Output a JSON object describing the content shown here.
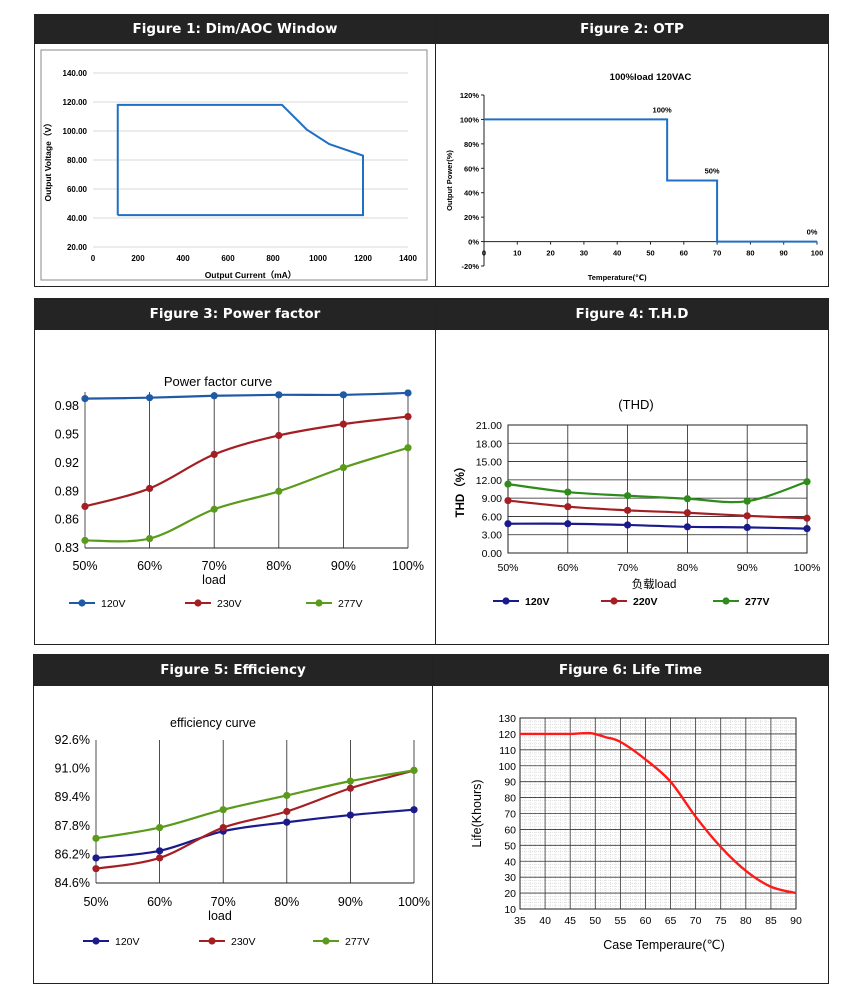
{
  "figures": {
    "f1": {
      "header": "Figure 1: Dim/AOC Window"
    },
    "f2": {
      "header": "Figure 2: OTP"
    },
    "f3": {
      "header": "Figure 3: Power factor"
    },
    "f4": {
      "header": "Figure 4: T.H.D"
    },
    "f5": {
      "header": "Figure 5: Efficiency"
    },
    "f6": {
      "header": "Figure 6: Life Time"
    }
  },
  "chart_data": [
    {
      "id": "f1",
      "type": "line",
      "title": "",
      "xlabel": "Output Current（mA）",
      "ylabel": "Output Voltage（V）",
      "xlim": [
        0,
        1400
      ],
      "ylim": [
        20,
        140
      ],
      "xticks": [
        "0",
        "200",
        "400",
        "600",
        "800",
        "1000",
        "1200",
        "1400"
      ],
      "yticks": [
        "20.00",
        "40.00",
        "60.00",
        "80.00",
        "100.00",
        "120.00",
        "140.00"
      ],
      "grid": "horizontal",
      "color": "#1f6fc4",
      "series": [
        {
          "points": [
            [
              110,
              42
            ],
            [
              110,
              118
            ],
            [
              840,
              118
            ],
            [
              950,
              101
            ],
            [
              1050,
              91
            ],
            [
              1200,
              83
            ],
            [
              1200,
              42
            ],
            [
              110,
              42
            ]
          ]
        }
      ]
    },
    {
      "id": "f2",
      "type": "line",
      "title": "100%load  120VAC",
      "xlabel": "Temperature(℃)",
      "ylabel": "Output Power(%)",
      "xlim": [
        0,
        100
      ],
      "ylim": [
        -20,
        120
      ],
      "xticks": [
        "0",
        "10",
        "20",
        "30",
        "40",
        "50",
        "60",
        "70",
        "80",
        "90",
        "100"
      ],
      "yticks": [
        "-20%",
        "0%",
        "20%",
        "40%",
        "60%",
        "80%",
        "100%",
        "120%"
      ],
      "grid": "none",
      "color": "#1f6fc4",
      "series": [
        {
          "points": [
            [
              0,
              100
            ],
            [
              55,
              100
            ],
            [
              55,
              50
            ],
            [
              70,
              50
            ],
            [
              70,
              0
            ],
            [
              100,
              0
            ]
          ]
        }
      ],
      "annotations": [
        {
          "text": "100%",
          "x": 55,
          "y": 100
        },
        {
          "text": "50%",
          "x": 70,
          "y": 50
        },
        {
          "text": "0%",
          "x": 100,
          "y": 0
        }
      ]
    },
    {
      "id": "f3",
      "type": "line",
      "title": "Power factor curve",
      "xlabel": "load",
      "ylabel": "",
      "categories": [
        "50%",
        "60%",
        "70%",
        "80%",
        "90%",
        "100%"
      ],
      "ylim": [
        0.83,
        0.995
      ],
      "yticks": [
        0.83,
        0.86,
        0.89,
        0.92,
        0.95,
        0.98
      ],
      "ytick_labels": [
        "0.83",
        "0.86",
        "0.89",
        "0.92",
        "0.95",
        "0.98"
      ],
      "grid": "vertical",
      "legend": "bottom",
      "series": [
        {
          "name": "120V",
          "color": "#1f5aa6",
          "values": [
            0.988,
            0.989,
            0.991,
            0.992,
            0.992,
            0.994
          ]
        },
        {
          "name": "230V",
          "color": "#a31f24",
          "values": [
            0.874,
            0.893,
            0.929,
            0.949,
            0.961,
            0.969
          ]
        },
        {
          "name": "277V",
          "color": "#5a9b1c",
          "values": [
            0.838,
            0.84,
            0.871,
            0.89,
            0.915,
            0.936
          ]
        }
      ]
    },
    {
      "id": "f4",
      "type": "line",
      "title": "(THD)",
      "xlabel": "负载load",
      "ylabel": "THD（%）",
      "categories": [
        "50%",
        "60%",
        "70%",
        "80%",
        "90%",
        "100%"
      ],
      "ylim": [
        0,
        21
      ],
      "yticks": [
        0,
        3,
        6,
        9,
        12,
        15,
        18,
        21
      ],
      "ytick_labels": [
        "0.00",
        "3.00",
        "6.00",
        "9.00",
        "12.00",
        "15.00",
        "18.00",
        "21.00"
      ],
      "grid": "both",
      "legend": "bottom",
      "series": [
        {
          "name": "120V",
          "color": "#1a1a8c",
          "values": [
            4.8,
            4.8,
            4.6,
            4.3,
            4.2,
            4.0
          ]
        },
        {
          "name": "220V",
          "color": "#a31f24",
          "values": [
            8.6,
            7.6,
            7.0,
            6.6,
            6.1,
            5.7
          ]
        },
        {
          "name": "277V",
          "color": "#2e8b1c",
          "values": [
            11.3,
            10.0,
            9.4,
            8.9,
            8.5,
            11.7
          ]
        }
      ]
    },
    {
      "id": "f5",
      "type": "line",
      "title": "efficiency curve",
      "xlabel": "load",
      "ylabel": "",
      "categories": [
        "50%",
        "60%",
        "70%",
        "80%",
        "90%",
        "100%"
      ],
      "ylim": [
        84.6,
        92.6
      ],
      "yticks": [
        84.6,
        86.2,
        87.8,
        89.4,
        91.0,
        92.6
      ],
      "ytick_labels": [
        "84.6%",
        "86.2%",
        "87.8%",
        "89.4%",
        "91.0%",
        "92.6%"
      ],
      "grid": "vertical",
      "legend": "bottom",
      "series": [
        {
          "name": "120V",
          "color": "#1a1a8c",
          "values": [
            86.0,
            86.4,
            87.5,
            88.0,
            88.4,
            88.7
          ]
        },
        {
          "name": "230V",
          "color": "#a31f24",
          "values": [
            85.4,
            86.0,
            87.7,
            88.6,
            89.9,
            90.9
          ]
        },
        {
          "name": "277V",
          "color": "#5a9b1c",
          "values": [
            87.1,
            87.7,
            88.7,
            89.5,
            90.3,
            90.9
          ]
        }
      ]
    },
    {
      "id": "f6",
      "type": "line",
      "title": "",
      "xlabel": "Case Temperaure(℃)",
      "ylabel": "Life(Khours)",
      "xlim": [
        35,
        90
      ],
      "ylim": [
        10,
        130
      ],
      "xticks": [
        "35",
        "40",
        "45",
        "50",
        "55",
        "60",
        "65",
        "70",
        "75",
        "80",
        "85",
        "90"
      ],
      "yticks": [
        "10",
        "20",
        "30",
        "40",
        "50",
        "60",
        "70",
        "80",
        "90",
        "100",
        "110",
        "120",
        "130"
      ],
      "grid": "both",
      "minor_grid": true,
      "color": "#ff1a1a",
      "series": [
        {
          "points": [
            [
              35,
              120
            ],
            [
              40,
              120
            ],
            [
              45,
              120
            ],
            [
              49,
              120.5
            ],
            [
              52,
              118
            ],
            [
              55,
              115
            ],
            [
              60,
              104
            ],
            [
              65,
              90
            ],
            [
              70,
              68
            ],
            [
              75,
              49
            ],
            [
              80,
              34
            ],
            [
              85,
              24
            ],
            [
              90,
              20
            ]
          ]
        }
      ]
    }
  ]
}
